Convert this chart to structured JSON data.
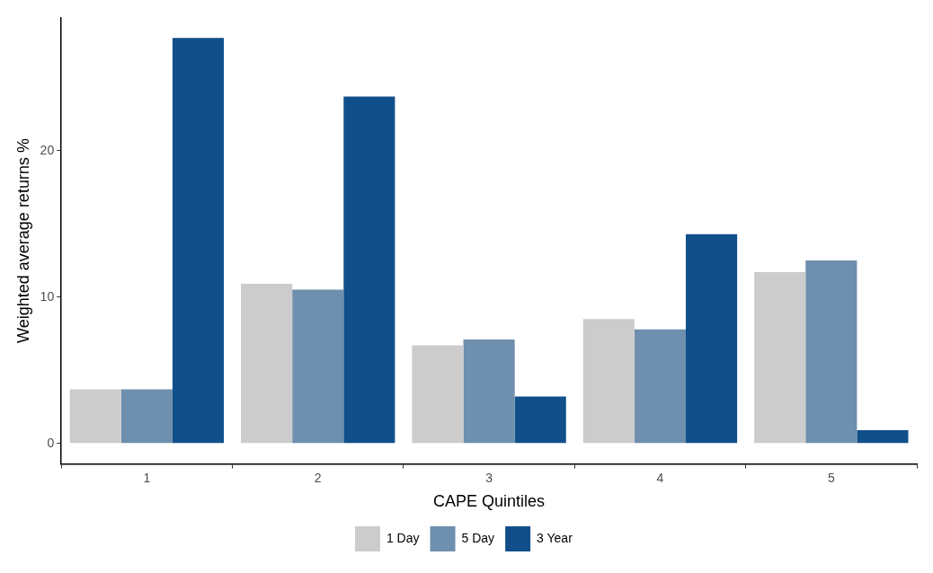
{
  "chart_data": {
    "type": "bar",
    "xlabel": "CAPE Quintiles",
    "ylabel": "Weighted average returns %",
    "categories": [
      "1",
      "2",
      "3",
      "4",
      "5"
    ],
    "series": [
      {
        "name": "1 Day",
        "color": "#cccccc",
        "values": [
          3.7,
          10.9,
          6.7,
          8.5,
          11.7
        ]
      },
      {
        "name": "5 Day",
        "color": "#6e8fad",
        "values": [
          3.7,
          10.5,
          7.1,
          7.8,
          12.5
        ]
      },
      {
        "name": "3 Year",
        "color": "#114f8a",
        "values": [
          27.7,
          23.7,
          3.2,
          14.3,
          0.9
        ]
      }
    ],
    "ylim": [
      -1.4,
      29.1
    ],
    "yticks": [
      0,
      10,
      20
    ],
    "grid": false,
    "legend": "bottom"
  }
}
